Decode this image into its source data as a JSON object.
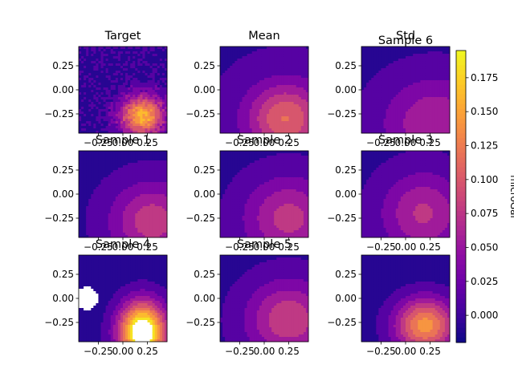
{
  "figure": {
    "colorbar": {
      "label": "microGal",
      "ticks": [
        0.0,
        0.025,
        0.05,
        0.075,
        0.1,
        0.125,
        0.15,
        0.175
      ],
      "tick_labels": [
        "0.000",
        "0.025",
        "0.050",
        "0.075",
        "0.100",
        "0.125",
        "0.150",
        "0.175"
      ],
      "range": [
        -0.02,
        0.195
      ],
      "colormap": "plasma"
    }
  },
  "chart_data": [
    {
      "type": "heatmap",
      "title": "Target",
      "field": {
        "cx": 0.2,
        "cy": -0.27,
        "amp": 0.165,
        "sx": 0.16,
        "sy": 0.15,
        "bg": -0.005,
        "noise": true
      },
      "xlim": [
        -0.45,
        0.45
      ],
      "ylim": [
        -0.45,
        0.45
      ],
      "xticks": [
        -0.25,
        0.0,
        0.25
      ],
      "xtick_labels": [
        "−0.25",
        "0.00",
        "0.25"
      ],
      "yticks": [
        0.25,
        0.0,
        -0.25
      ],
      "ytick_labels": [
        "0.25",
        "0.00",
        "−0.25"
      ]
    },
    {
      "type": "heatmap",
      "title": "Mean",
      "field": {
        "cx": 0.22,
        "cy": -0.3,
        "amp": 0.11,
        "sx": 0.28,
        "sy": 0.26,
        "bg": 0.0
      },
      "xlim": [
        -0.45,
        0.45
      ],
      "ylim": [
        -0.45,
        0.45
      ],
      "xticks": [
        -0.25,
        0.0,
        0.25
      ],
      "xtick_labels": [
        "−0.25",
        "0.00",
        "0.25"
      ],
      "yticks": [
        0.25,
        0.0,
        -0.25
      ],
      "ytick_labels": [
        "0.25",
        "0.00",
        "−0.25"
      ]
    },
    {
      "type": "heatmap",
      "title": "Std",
      "overlay_title": "Sample 6",
      "field": {
        "cx": 0.3,
        "cy": -0.35,
        "amp": 0.07,
        "sx": 0.38,
        "sy": 0.34,
        "bg": -0.005
      },
      "xlim": [
        -0.45,
        0.45
      ],
      "ylim": [
        -0.45,
        0.45
      ],
      "xticks": [
        -0.25,
        0.0,
        0.25
      ],
      "xtick_labels": [
        "−0.25",
        "0.00",
        "0.25"
      ],
      "yticks": [
        0.25,
        0.0,
        -0.25
      ],
      "ytick_labels": [
        "0.25",
        "0.00",
        "−0.25"
      ]
    },
    {
      "type": "heatmap",
      "title": "Sample 1",
      "field": {
        "cx": 0.3,
        "cy": -0.28,
        "amp": 0.085,
        "sx": 0.3,
        "sy": 0.28,
        "bg": -0.005
      },
      "xlim": [
        -0.45,
        0.45
      ],
      "ylim": [
        -0.45,
        0.45
      ],
      "xticks": [
        -0.25,
        0.0,
        0.25
      ],
      "xtick_labels": [
        "−0.25",
        "0.00",
        "0.25"
      ],
      "yticks": [
        0.25,
        0.0,
        -0.25
      ],
      "ytick_labels": [
        "0.25",
        "0.00",
        "−0.25"
      ]
    },
    {
      "type": "heatmap",
      "title": "Sample 2",
      "field": {
        "cx": 0.25,
        "cy": -0.25,
        "amp": 0.08,
        "sx": 0.32,
        "sy": 0.3,
        "bg": -0.005
      },
      "xlim": [
        -0.45,
        0.45
      ],
      "ylim": [
        -0.45,
        0.45
      ],
      "xticks": [
        -0.25,
        0.0,
        0.25
      ],
      "xtick_labels": [
        "−0.25",
        "0.00",
        "0.25"
      ],
      "yticks": [
        0.25,
        0.0,
        -0.25
      ],
      "ytick_labels": [
        "0.25",
        "0.00",
        "−0.25"
      ]
    },
    {
      "type": "heatmap",
      "title": "Sample 3",
      "field": {
        "cx": 0.18,
        "cy": -0.2,
        "amp": 0.075,
        "sx": 0.3,
        "sy": 0.3,
        "bg": -0.005
      },
      "xlim": [
        -0.45,
        0.45
      ],
      "ylim": [
        -0.45,
        0.45
      ],
      "xticks": [
        -0.25,
        0.0,
        0.25
      ],
      "xtick_labels": [
        "−0.25",
        "0.00",
        "0.25"
      ],
      "yticks": [
        0.25,
        0.0,
        -0.25
      ],
      "ytick_labels": [
        "0.25",
        "0.00",
        "−0.25"
      ]
    },
    {
      "type": "heatmap",
      "title": "Sample 4",
      "field": {
        "cx": 0.2,
        "cy": -0.35,
        "amp": 0.24,
        "sx": 0.17,
        "sy": 0.22,
        "bg": -0.01,
        "hole": {
          "cx": -0.37,
          "cy": 0.0,
          "r": 0.12
        }
      },
      "xlim": [
        -0.45,
        0.45
      ],
      "ylim": [
        -0.45,
        0.45
      ],
      "xticks": [
        -0.25,
        0.0,
        0.25
      ],
      "xtick_labels": [
        "−0.25",
        "0.00",
        "0.25"
      ],
      "yticks": [
        0.25,
        0.0,
        -0.25
      ],
      "ytick_labels": [
        "0.25",
        "0.00",
        "−0.25"
      ]
    },
    {
      "type": "heatmap",
      "title": "Sample 5",
      "field": {
        "cx": 0.25,
        "cy": -0.22,
        "amp": 0.09,
        "sx": 0.3,
        "sy": 0.28,
        "bg": -0.005
      },
      "xlim": [
        -0.45,
        0.45
      ],
      "ylim": [
        -0.45,
        0.45
      ],
      "xticks": [
        -0.25,
        0.0,
        0.25
      ],
      "xtick_labels": [
        "−0.25",
        "0.00",
        "0.25"
      ],
      "yticks": [
        0.25,
        0.0,
        -0.25
      ],
      "ytick_labels": [
        "0.25",
        "0.00",
        "−0.25"
      ]
    },
    {
      "type": "heatmap",
      "title": "",
      "field": {
        "cx": 0.2,
        "cy": -0.28,
        "amp": 0.15,
        "sx": 0.22,
        "sy": 0.2,
        "bg": -0.01
      },
      "xlim": [
        -0.45,
        0.45
      ],
      "ylim": [
        -0.45,
        0.45
      ],
      "xticks": [
        -0.25,
        0.0,
        0.25
      ],
      "xtick_labels": [
        "−0.25",
        "0.00",
        "0.25"
      ],
      "yticks": [
        0.25,
        0.0,
        -0.25
      ],
      "ytick_labels": [
        "0.25",
        "0.00",
        "−0.25"
      ]
    }
  ]
}
